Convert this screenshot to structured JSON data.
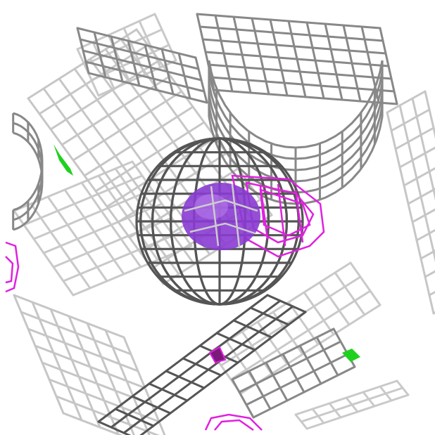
{
  "scene": {
    "background": "#ffffff",
    "mesh_colors": {
      "dark": "#555555",
      "mid": "#888888",
      "light": "#c4c4c4"
    },
    "density_colors": {
      "magenta": "#e020e0",
      "violet": "#8a3bd1",
      "green": "#1fd11f"
    }
  }
}
